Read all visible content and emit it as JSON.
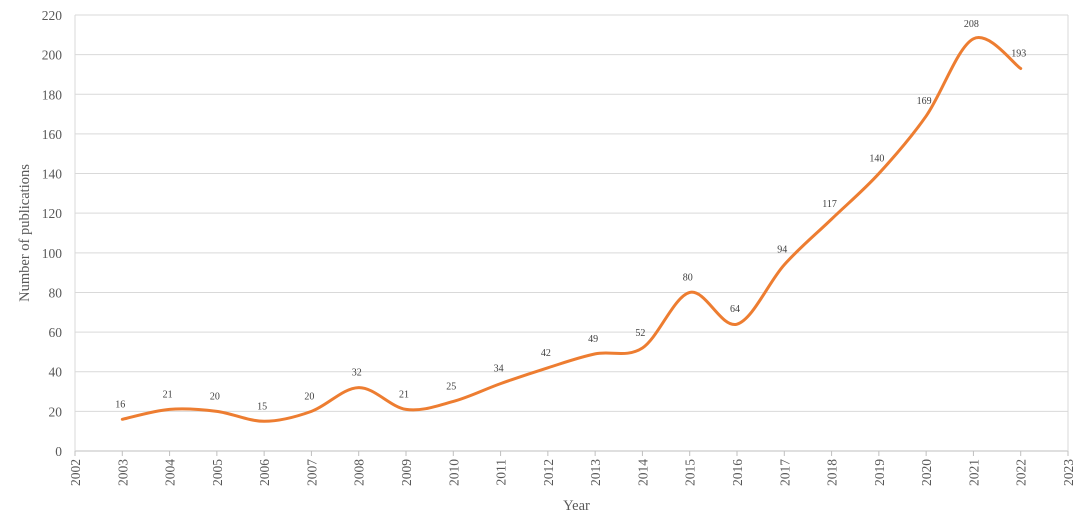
{
  "chart_data": {
    "type": "line",
    "title": "",
    "xlabel": "Year",
    "ylabel": "Number of publications",
    "xlim": [
      2002,
      2023
    ],
    "ylim": [
      0,
      220
    ],
    "x_ticks": [
      "2002",
      "2003",
      "2004",
      "2005",
      "2006",
      "2007",
      "2008",
      "2009",
      "2010",
      "2011",
      "2012",
      "2013",
      "2014",
      "2015",
      "2016",
      "2017",
      "2018",
      "2019",
      "2020",
      "2021",
      "2022",
      "2023"
    ],
    "y_ticks": [
      "0",
      "20",
      "40",
      "60",
      "80",
      "100",
      "120",
      "140",
      "160",
      "180",
      "200",
      "220"
    ],
    "grid": true,
    "smooth": true,
    "legend": "none",
    "series": [
      {
        "color": "#ED7D31",
        "x": [
          2003,
          2004,
          2005,
          2006,
          2007,
          2008,
          2009,
          2010,
          2011,
          2012,
          2013,
          2014,
          2015,
          2016,
          2017,
          2018,
          2019,
          2020,
          2021,
          2022
        ],
        "values": [
          16,
          21,
          20,
          15,
          20,
          32,
          21,
          25,
          34,
          42,
          49,
          52,
          80,
          64,
          94,
          117,
          140,
          169,
          208,
          193
        ],
        "labels": [
          "16",
          "21",
          "20",
          "15",
          "20",
          "32",
          "21",
          "25",
          "34",
          "42",
          "49",
          "52",
          "80",
          "64",
          "94",
          "117",
          "140",
          "169",
          "208",
          "193"
        ]
      }
    ]
  }
}
